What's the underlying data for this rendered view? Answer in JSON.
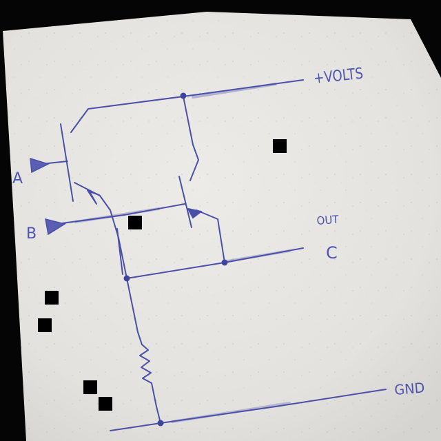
{
  "labels": {
    "vplus": "+VOLTS",
    "out": "OUT",
    "c": "C",
    "a": "A",
    "b": "B",
    "gnd": "GND"
  },
  "colors": {
    "ink": "#4a4fa8",
    "paper": "#e9e7e3",
    "background": "#050505",
    "redaction": "#000000"
  }
}
